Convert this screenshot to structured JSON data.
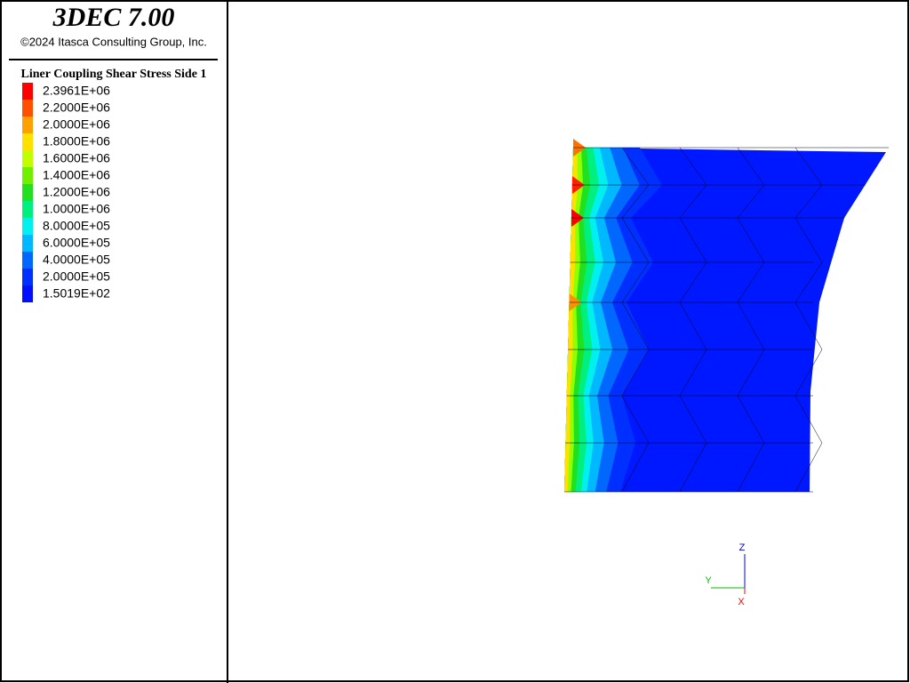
{
  "header": {
    "title": "3DEC 7.00",
    "copyright": "©2024 Itasca Consulting Group, Inc."
  },
  "legend": {
    "title": "Liner Coupling Shear Stress Side 1",
    "items": [
      {
        "label": "2.3961E+06",
        "color": "#ff0000"
      },
      {
        "label": "2.2000E+06",
        "color": "#ff5000"
      },
      {
        "label": "2.0000E+06",
        "color": "#ffa000"
      },
      {
        "label": "1.8000E+06",
        "color": "#ffe000"
      },
      {
        "label": "1.6000E+06",
        "color": "#c0ff00"
      },
      {
        "label": "1.4000E+06",
        "color": "#70f000"
      },
      {
        "label": "1.2000E+06",
        "color": "#20e020"
      },
      {
        "label": "1.0000E+06",
        "color": "#00f080"
      },
      {
        "label": "8.0000E+05",
        "color": "#00f0f0"
      },
      {
        "label": "6.0000E+05",
        "color": "#00b8ff"
      },
      {
        "label": "4.0000E+05",
        "color": "#0068ff"
      },
      {
        "label": "2.0000E+05",
        "color": "#0030ff"
      },
      {
        "label": "1.5019E+02",
        "color": "#0010ff"
      }
    ]
  },
  "axes": {
    "z": "Z",
    "y": "Y",
    "x": "X"
  }
}
